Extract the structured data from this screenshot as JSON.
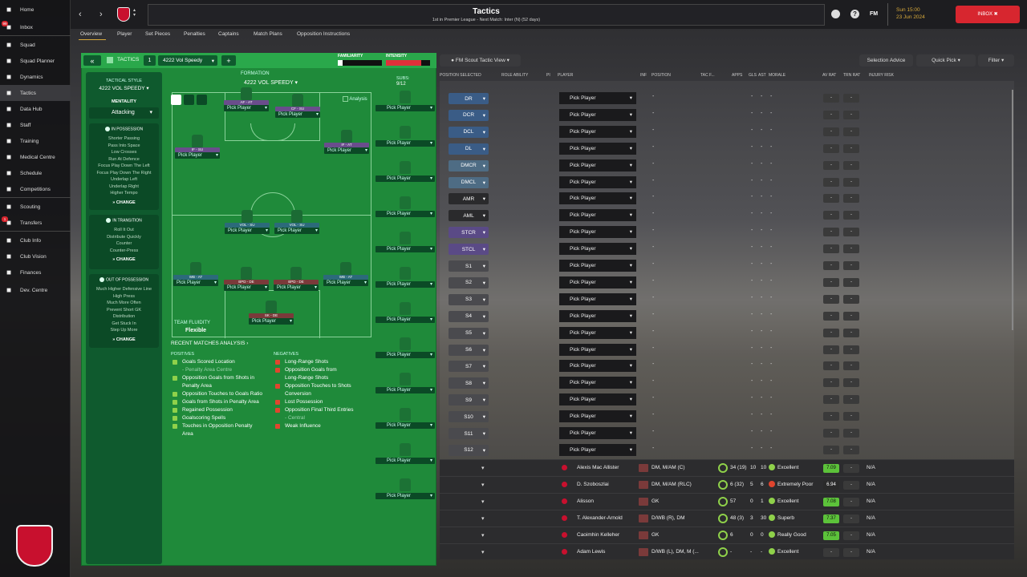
{
  "nav": {
    "items": [
      {
        "label": "Home",
        "icon": "home-icon"
      },
      {
        "label": "Inbox",
        "icon": "inbox-icon",
        "badge": "99"
      },
      {
        "label": "Squad",
        "icon": "squad-icon"
      },
      {
        "label": "Squad Planner",
        "icon": "planner-icon"
      },
      {
        "label": "Dynamics",
        "icon": "dynamics-icon"
      },
      {
        "label": "Tactics",
        "icon": "tactics-icon"
      },
      {
        "label": "Data Hub",
        "icon": "datahub-icon"
      },
      {
        "label": "Staff",
        "icon": "staff-icon"
      },
      {
        "label": "Training",
        "icon": "training-icon"
      },
      {
        "label": "Medical Centre",
        "icon": "medical-icon"
      },
      {
        "label": "Schedule",
        "icon": "schedule-icon"
      },
      {
        "label": "Competitions",
        "icon": "competitions-icon"
      },
      {
        "label": "Scouting",
        "icon": "scouting-icon"
      },
      {
        "label": "Transfers",
        "icon": "transfers-icon",
        "badge": "1"
      },
      {
        "label": "Club Info",
        "icon": "clubinfo-icon"
      },
      {
        "label": "Club Vision",
        "icon": "clubvision-icon"
      },
      {
        "label": "Finances",
        "icon": "finances-icon"
      },
      {
        "label": "Dev. Centre",
        "icon": "devcentre-icon"
      }
    ]
  },
  "top": {
    "title": "Tactics",
    "subtitle": "1st in Premier League - Next Match: Inter (N) (52 days)",
    "date_time": "Sun 15:00",
    "date": "23 Jun 2024",
    "inbox": "INBOX",
    "fm": "FM"
  },
  "subtabs": [
    "Overview",
    "Player",
    "Set Pieces",
    "Penalties",
    "Captains",
    "Match Plans",
    "Opposition Instructions"
  ],
  "tactic": {
    "header_label": "TACTICS",
    "slot": "1",
    "name": "4222 Vol Speedy",
    "familiarity_label": "FAMILIARITY",
    "intensity_label": "INTENSITY",
    "add": "+",
    "back": "«"
  },
  "style": {
    "label": "TACTICAL STYLE",
    "value": "4222 VOL SPEEDY",
    "mentality_label": "MENTALITY",
    "mentality": "Attacking"
  },
  "in_possession": {
    "label": "IN POSSESSION",
    "items": [
      "Shorter Passing",
      "Pass Into Space",
      "Low Crosses",
      "Run At Defence",
      "Focus Play Down The Left",
      "Focus Play Down The Right",
      "Underlap Left",
      "Underlap Right",
      "Higher Tempo"
    ],
    "change": "CHANGE"
  },
  "in_transition": {
    "label": "IN TRANSITION",
    "items": [
      "Roll It Out",
      "Distribute Quickly",
      "Counter",
      "Counter-Press"
    ],
    "change": "CHANGE"
  },
  "out_possession": {
    "label": "OUT OF POSSESSION",
    "items": [
      "Much Higher Defensive Line",
      "High Press",
      "Much More Often",
      "Prevent Short GK",
      "Distribution",
      "Get Stuck In",
      "Step Up More"
    ],
    "change": "CHANGE"
  },
  "formation": {
    "label": "FORMATION",
    "value": "4222 VOL SPEEDY",
    "subs_label": "SUBS:",
    "subs_count": "9/12",
    "analysis": "Analysis",
    "fluidity_label": "TEAM FLUIDITY",
    "fluidity": "Flexible"
  },
  "players": [
    {
      "role": "AF - AT",
      "pick": "Pick Player",
      "cls": ""
    },
    {
      "role": "CF - SU",
      "pick": "Pick Player",
      "cls": ""
    },
    {
      "role": "IF - SU",
      "pick": "Pick Player",
      "cls": ""
    },
    {
      "role": "IF - AT",
      "pick": "Pick Player",
      "cls": ""
    },
    {
      "role": "VOL - SU",
      "pick": "Pick Player",
      "cls": "su"
    },
    {
      "role": "VOL - SU",
      "pick": "Pick Player",
      "cls": "su"
    },
    {
      "role": "WB - AT",
      "pick": "Pick Player",
      "cls": "su"
    },
    {
      "role": "BPD - DE",
      "pick": "Pick Player",
      "cls": "de"
    },
    {
      "role": "BPD - DE",
      "pick": "Pick Player",
      "cls": "de"
    },
    {
      "role": "WB - AT",
      "pick": "Pick Player",
      "cls": "su"
    },
    {
      "role": "SK - DE",
      "pick": "Pick Player",
      "cls": "de"
    }
  ],
  "subs_pick": "Pick Player",
  "analysis": {
    "title": "RECENT MATCHES ANALYSIS",
    "pos_label": "POSITIVES",
    "neg_label": "NEGATIVES",
    "positives": [
      "Goals Scored Location",
      "- Penalty Area Centre",
      "Opposition Goals from Shots in",
      "Penalty Area",
      "Opposition Touches to Goals Ratio",
      "Goals from Shots in Penalty Area",
      "Regained Possession",
      "Goalscoring Spells",
      "Touches in Opposition Penalty",
      "Area"
    ],
    "negatives": [
      "Long-Range Shots",
      "Opposition Goals from",
      "Long-Range Shots",
      "Opposition Touches to Shots",
      "Conversion",
      "Lost Possession",
      "Opposition Final Third Entries",
      "- Central",
      "Weak Influence"
    ]
  },
  "right": {
    "view": "FM Scout Tactic View",
    "selection_advice": "Selection Advice",
    "quick_pick": "Quick Pick",
    "filter": "Filter",
    "headers": [
      "POSITION SELECTED",
      "ROLE ABILITY",
      "PI",
      "PLAYER",
      "INF",
      "POSITION",
      "TAC F...",
      "APPS",
      "GLS",
      "AST",
      "MORALE",
      "AV RAT",
      "TRN RAT",
      "INJURY RISK"
    ],
    "rows": [
      {
        "pos": "DR",
        "color": "#3a5c86"
      },
      {
        "pos": "DCR",
        "color": "#3a5c86"
      },
      {
        "pos": "DCL",
        "color": "#3a5c86"
      },
      {
        "pos": "DL",
        "color": "#3a5c86"
      },
      {
        "pos": "DMCR",
        "color": "#4e6c84"
      },
      {
        "pos": "DMCL",
        "color": "#4e6c84"
      },
      {
        "pos": "AMR",
        "color": "#2a2a2c"
      },
      {
        "pos": "AML",
        "color": "#2a2a2c"
      },
      {
        "pos": "STCR",
        "color": "#5a4a86"
      },
      {
        "pos": "STCL",
        "color": "#5a4a86"
      },
      {
        "pos": "S1",
        "color": "#4a4a4e"
      },
      {
        "pos": "S2",
        "color": "#4a4a4e"
      },
      {
        "pos": "S3",
        "color": "#4a4a4e"
      },
      {
        "pos": "S4",
        "color": "#4a4a4e"
      },
      {
        "pos": "S5",
        "color": "#4a4a4e"
      },
      {
        "pos": "S6",
        "color": "#4a4a4e"
      },
      {
        "pos": "S7",
        "color": "#4a4a4e"
      },
      {
        "pos": "S8",
        "color": "#4a4a4e"
      },
      {
        "pos": "S9",
        "color": "#4a4a4e"
      },
      {
        "pos": "S10",
        "color": "#4a4a4e"
      },
      {
        "pos": "S11",
        "color": "#4a4a4e"
      },
      {
        "pos": "S12",
        "color": "#4a4a4e"
      }
    ],
    "pick": "Pick Player",
    "dash": "-",
    "players": [
      {
        "name": "Alexis Mac Allister",
        "position": "DM, M/AM (C)",
        "apps": "34 (19)",
        "gls": "10",
        "ast": "10",
        "morale": "Excellent",
        "av": "7.09",
        "trn": "-",
        "risk": "N/A"
      },
      {
        "name": "D. Szoboszlai",
        "position": "DM, M/AM (RLC)",
        "apps": "6 (32)",
        "gls": "5",
        "ast": "6",
        "morale": "Extremely Poor",
        "av": "6.94",
        "trn": "-",
        "risk": "N/A"
      },
      {
        "name": "Alisson",
        "position": "GK",
        "apps": "57",
        "gls": "0",
        "ast": "1",
        "morale": "Excellent",
        "av": "7.08",
        "trn": "-",
        "risk": "N/A"
      },
      {
        "name": "T. Alexander-Arnold",
        "position": "D/WB (R), DM",
        "apps": "48 (3)",
        "gls": "3",
        "ast": "30",
        "morale": "Superb",
        "av": "7.37",
        "trn": "-",
        "risk": "N/A"
      },
      {
        "name": "Caoimhin Kelleher",
        "position": "GK",
        "apps": "6",
        "gls": "0",
        "ast": "0",
        "morale": "Really Good",
        "av": "7.05",
        "trn": "-",
        "risk": "N/A"
      },
      {
        "name": "Adam Lewis",
        "position": "D/WB (L), DM, M (...",
        "apps": "-",
        "gls": "-",
        "ast": "-",
        "morale": "Excellent",
        "av": "-",
        "trn": "-",
        "risk": "N/A"
      }
    ]
  }
}
